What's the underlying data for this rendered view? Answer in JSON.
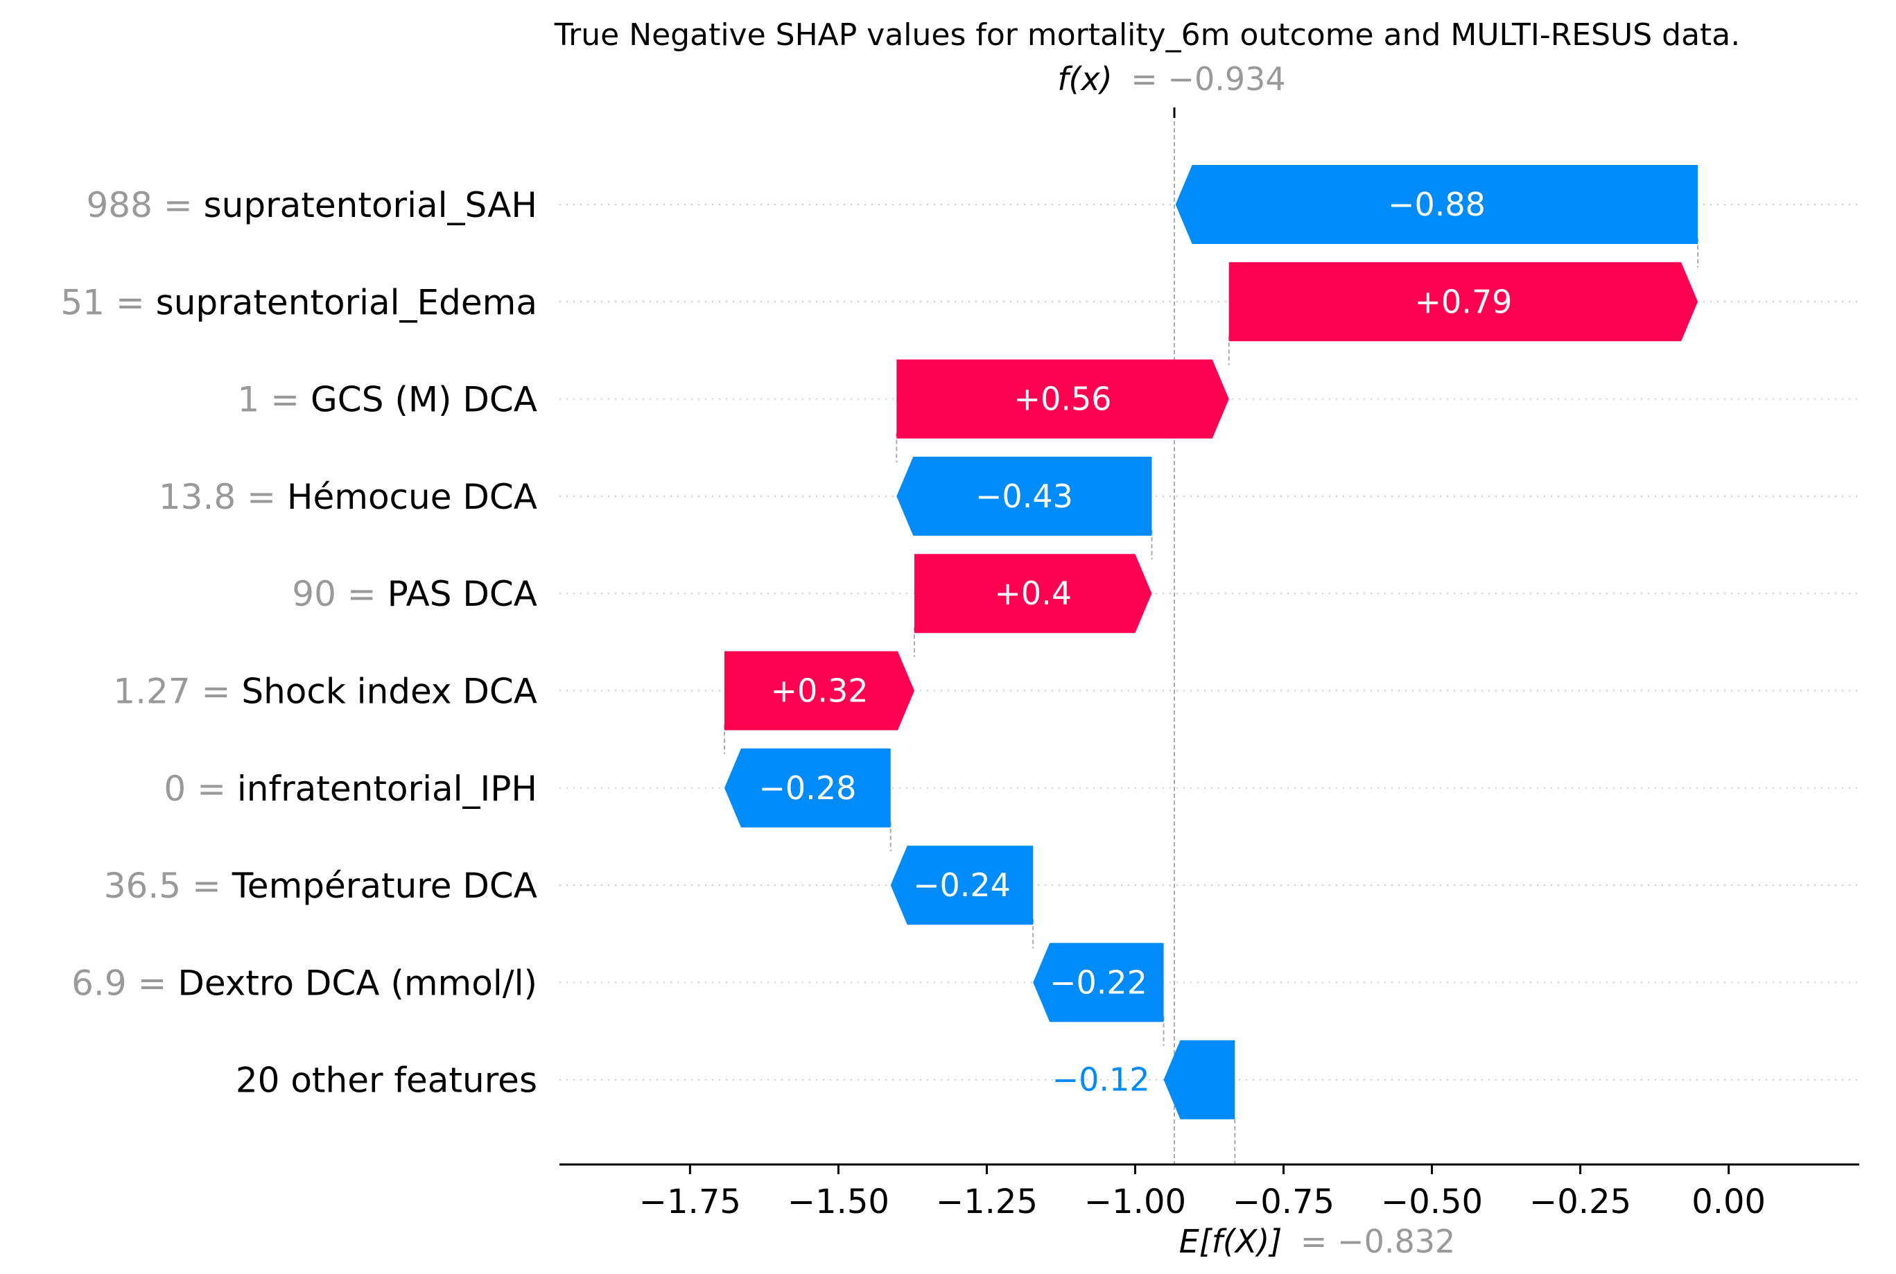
{
  "chart_data": {
    "type": "waterfall",
    "title": "True Negative SHAP values for mortality_6m outcome and MULTI-RESUS data.",
    "fx_label": "f(x)",
    "fx_value": "= −0.934",
    "fx": -0.934,
    "ex_label": "E[f(X)]",
    "ex_value": "= −0.832",
    "ex": -0.832,
    "xlim": [
      -1.97,
      0.22
    ],
    "xticks": [
      -1.75,
      -1.5,
      -1.25,
      -1.0,
      -0.75,
      -0.5,
      -0.25,
      0.0
    ],
    "xtick_labels": [
      "−1.75",
      "−1.50",
      "−1.25",
      "−1.00",
      "−0.75",
      "−0.50",
      "−0.25",
      "0.00"
    ],
    "colors": {
      "positive": "#ff0051",
      "negative": "#008bfb",
      "value_text": "#999999"
    },
    "features": [
      {
        "value": "988 =",
        "name": "supratentorial_SAH",
        "shap": -0.88,
        "label": "−0.88"
      },
      {
        "value": "51 =",
        "name": "supratentorial_Edema",
        "shap": 0.79,
        "label": "+0.79"
      },
      {
        "value": "1 =",
        "name": "GCS (M) DCA",
        "shap": 0.56,
        "label": "+0.56"
      },
      {
        "value": "13.8 =",
        "name": "Hémocue DCA",
        "shap": -0.43,
        "label": "−0.43"
      },
      {
        "value": "90 =",
        "name": "PAS DCA",
        "shap": 0.4,
        "label": "+0.4"
      },
      {
        "value": "1.27 =",
        "name": "Shock index DCA",
        "shap": 0.32,
        "label": "+0.32"
      },
      {
        "value": "0 =",
        "name": "infratentorial_IPH",
        "shap": -0.28,
        "label": "−0.28"
      },
      {
        "value": "36.5 =",
        "name": "Température DCA",
        "shap": -0.24,
        "label": "−0.24"
      },
      {
        "value": "6.9 =",
        "name": "Dextro DCA (mmol/l)",
        "shap": -0.22,
        "label": "−0.22"
      },
      {
        "value": "",
        "name": "20 other features",
        "shap": -0.12,
        "label": "−0.12"
      }
    ]
  }
}
